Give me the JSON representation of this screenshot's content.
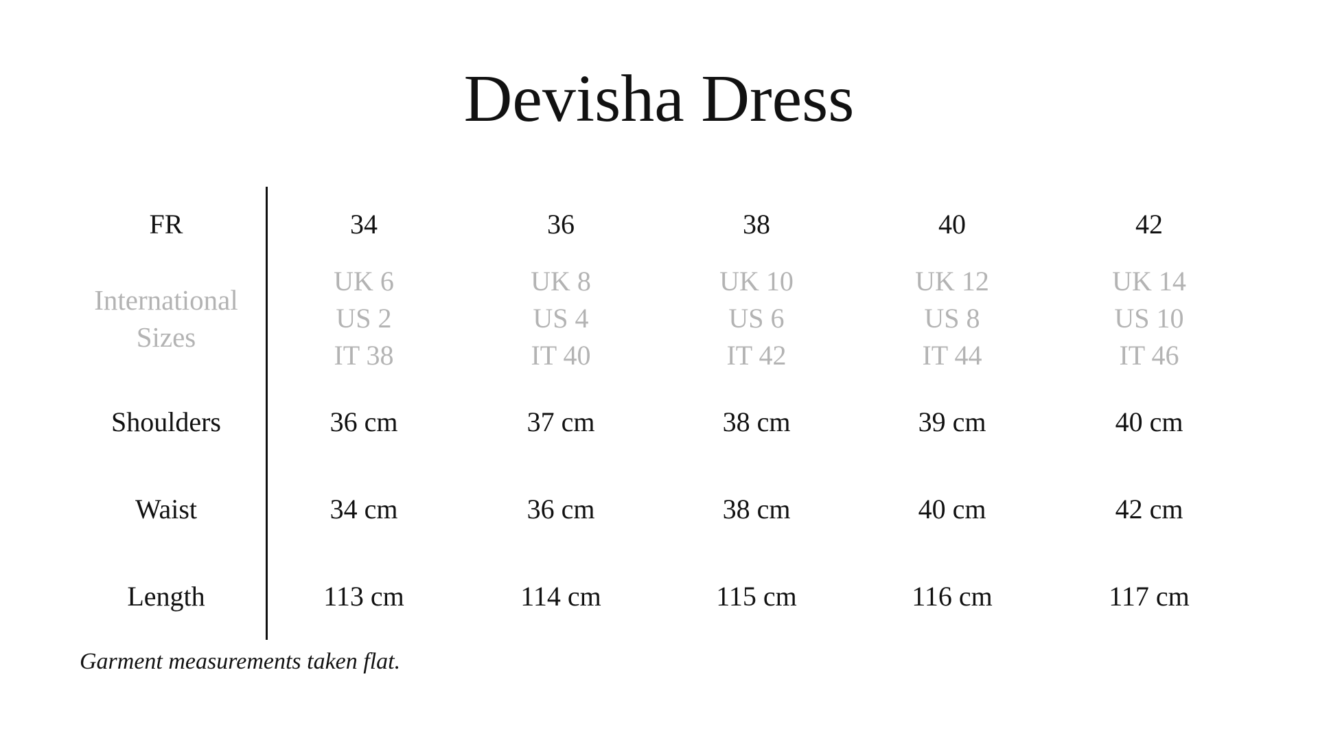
{
  "title": "Devisha Dress",
  "row_labels": {
    "fr": "FR",
    "international": "International Sizes",
    "shoulders": "Shoulders",
    "waist": "Waist",
    "length": "Length"
  },
  "columns": [
    {
      "fr": "34",
      "uk": "UK 6",
      "us": "US 2",
      "it": "IT 38",
      "shoulders": "36 cm",
      "waist": "34 cm",
      "length": "113 cm"
    },
    {
      "fr": "36",
      "uk": "UK 8",
      "us": "US 4",
      "it": "IT 40",
      "shoulders": "37 cm",
      "waist": "36 cm",
      "length": "114 cm"
    },
    {
      "fr": "38",
      "uk": "UK 10",
      "us": "US 6",
      "it": "IT 42",
      "shoulders": "38 cm",
      "waist": "38 cm",
      "length": "115 cm"
    },
    {
      "fr": "40",
      "uk": "UK 12",
      "us": "US 8",
      "it": "IT 44",
      "shoulders": "39 cm",
      "waist": "40 cm",
      "length": "116 cm"
    },
    {
      "fr": "42",
      "uk": "UK 14",
      "us": "US 10",
      "it": "IT 46",
      "shoulders": "40 cm",
      "waist": "42 cm",
      "length": "117 cm"
    }
  ],
  "footnote": "Garment measurements taken flat.",
  "colors": {
    "text": "#111111",
    "secondary": "#b3b3b3"
  }
}
